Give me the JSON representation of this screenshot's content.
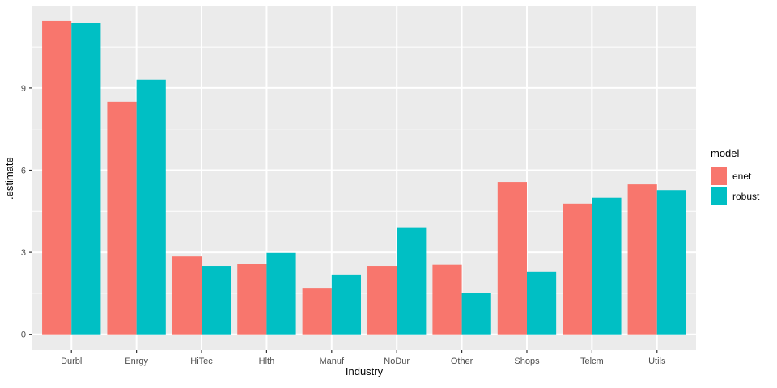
{
  "chart_data": {
    "type": "bar",
    "title": "",
    "xlabel": "Industry",
    "ylabel": ".estimate",
    "legend_title": "model",
    "legend_position": "right",
    "grid": true,
    "categories": [
      "Durbl",
      "Enrgy",
      "HiTec",
      "Hlth",
      "Manuf",
      "NoDur",
      "Other",
      "Shops",
      "Telcm",
      "Utils"
    ],
    "series": [
      {
        "name": "enet",
        "color": "#F8766D",
        "values": [
          11.45,
          8.5,
          2.85,
          2.57,
          1.7,
          2.5,
          2.54,
          5.57,
          4.78,
          5.48
        ]
      },
      {
        "name": "robust",
        "color": "#00BFC4",
        "values": [
          11.36,
          9.3,
          2.5,
          2.98,
          2.18,
          3.9,
          1.5,
          2.3,
          4.99,
          5.27
        ]
      }
    ],
    "y_ticks": [
      0,
      3,
      6,
      9
    ],
    "y_minor_ticks": [
      1.5,
      4.5,
      7.5,
      10.5
    ],
    "ylim": [
      -0.57,
      11.98
    ],
    "bar_group_fraction": 0.9,
    "colors": {
      "panel_background": "#EBEBEB",
      "grid": "#FFFFFF",
      "tick_mark": "#333333",
      "tick_label": "#4D4D4D",
      "axis_title": "#000000"
    }
  }
}
